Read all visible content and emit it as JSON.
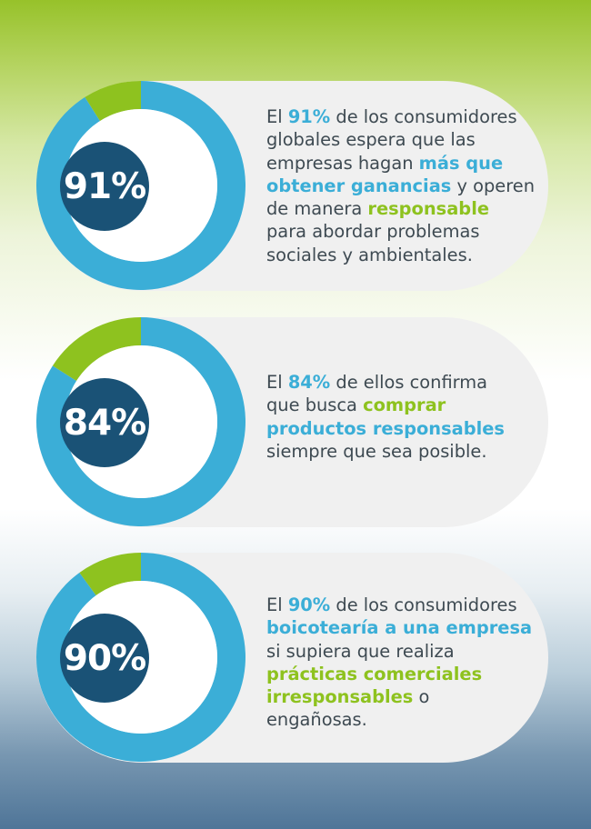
{
  "colors": {
    "blue": "#3baed7",
    "green": "#8ec21f",
    "navy": "#1a5276",
    "text": "#3e4a52"
  },
  "chart_data": [
    {
      "type": "pie",
      "variant": "donut",
      "value": 91,
      "label": "91%",
      "slices": [
        {
          "value": 91,
          "color": "#3baed7"
        },
        {
          "value": 9,
          "color": "#8ec21f"
        }
      ],
      "lines": [
        [
          {
            "t": "El "
          },
          {
            "t": "91%",
            "s": "b"
          },
          {
            "t": " de los consumidores"
          }
        ],
        [
          {
            "t": "globales espera que las"
          }
        ],
        [
          {
            "t": "empresas hagan "
          },
          {
            "t": "más que",
            "s": "b"
          }
        ],
        [
          {
            "t": "obtener ganancias",
            "s": "b"
          },
          {
            "t": " y operen"
          }
        ],
        [
          {
            "t": "de manera "
          },
          {
            "t": "responsable",
            "s": "g"
          }
        ],
        [
          {
            "t": "para abordar problemas"
          }
        ],
        [
          {
            "t": "sociales y ambientales."
          }
        ]
      ]
    },
    {
      "type": "pie",
      "variant": "donut",
      "value": 84,
      "label": "84%",
      "slices": [
        {
          "value": 84,
          "color": "#3baed7"
        },
        {
          "value": 16,
          "color": "#8ec21f"
        }
      ],
      "lines": [
        [
          {
            "t": "El "
          },
          {
            "t": "84%",
            "s": "b"
          },
          {
            "t": " de ellos confirma"
          }
        ],
        [
          {
            "t": "que busca "
          },
          {
            "t": "comprar",
            "s": "g"
          }
        ],
        [
          {
            "t": "productos responsables",
            "s": "b"
          }
        ],
        [
          {
            "t": "siempre que sea posible."
          }
        ]
      ]
    },
    {
      "type": "pie",
      "variant": "donut",
      "value": 90,
      "label": "90%",
      "slices": [
        {
          "value": 90,
          "color": "#3baed7"
        },
        {
          "value": 10,
          "color": "#8ec21f"
        }
      ],
      "lines": [
        [
          {
            "t": "El "
          },
          {
            "t": "90%",
            "s": "b"
          },
          {
            "t": " de los consumidores"
          }
        ],
        [
          {
            "t": "boicotearía a una empresa",
            "s": "b"
          }
        ],
        [
          {
            "t": "si supiera que realiza"
          }
        ],
        [
          {
            "t": "prácticas comerciales",
            "s": "g"
          }
        ],
        [
          {
            "t": "irresponsables",
            "s": "g"
          },
          {
            "t": " o"
          }
        ],
        [
          {
            "t": "engañosas."
          }
        ]
      ]
    }
  ]
}
